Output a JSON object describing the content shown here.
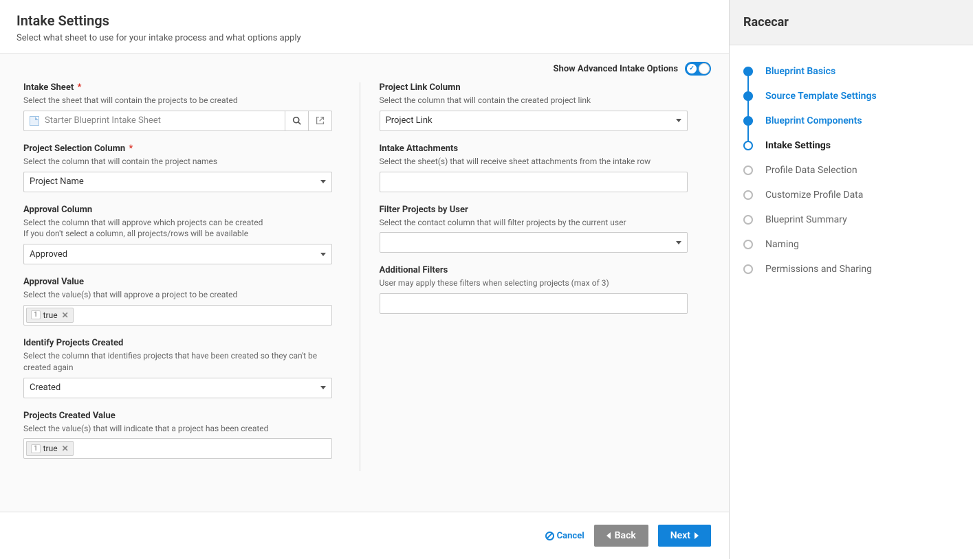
{
  "header": {
    "title": "Intake Settings",
    "subtitle": "Select what sheet to use for your intake process and what options apply"
  },
  "advanced": {
    "label": "Show Advanced Intake Options",
    "on": true
  },
  "left": {
    "intake_sheet": {
      "label": "Intake Sheet",
      "required": true,
      "help": "Select the sheet that will contain the projects to be created",
      "value": "Starter Blueprint Intake Sheet"
    },
    "project_selection": {
      "label": "Project Selection Column",
      "required": true,
      "help": "Select the column that will contain the project names",
      "value": "Project Name"
    },
    "approval_column": {
      "label": "Approval Column",
      "help1": "Select the column that will approve which projects can be created",
      "help2": "If you don't select a column, all projects/rows will be available",
      "value": "Approved"
    },
    "approval_value": {
      "label": "Approval Value",
      "help": "Select the value(s) that will approve a project to be created",
      "tag_index": "1",
      "tag_value": "true"
    },
    "identify_created": {
      "label": "Identify Projects Created",
      "help": "Select the column that identifies projects that have been created so they can't be created again",
      "value": "Created"
    },
    "created_value": {
      "label": "Projects Created Value",
      "help": "Select the value(s) that will indicate that a project has been created",
      "tag_index": "1",
      "tag_value": "true"
    }
  },
  "right": {
    "project_link": {
      "label": "Project Link Column",
      "help": "Select the column that will contain the created project link",
      "value": "Project Link"
    },
    "intake_attachments": {
      "label": "Intake Attachments",
      "help": "Select the sheet(s) that will receive sheet attachments from the intake row"
    },
    "filter_by_user": {
      "label": "Filter Projects by User",
      "help": "Select the contact column that will filter projects by the current user"
    },
    "additional_filters": {
      "label": "Additional Filters",
      "help": "User may apply these filters when selecting projects (max of 3)"
    }
  },
  "footer": {
    "cancel": "Cancel",
    "back": "Back",
    "next": "Next"
  },
  "wizard": {
    "title": "Racecar",
    "steps": [
      {
        "label": "Blueprint Basics",
        "state": "done"
      },
      {
        "label": "Source Template Settings",
        "state": "done"
      },
      {
        "label": "Blueprint Components",
        "state": "done"
      },
      {
        "label": "Intake Settings",
        "state": "current"
      },
      {
        "label": "Profile Data Selection",
        "state": "todo"
      },
      {
        "label": "Customize Profile Data",
        "state": "todo"
      },
      {
        "label": "Blueprint Summary",
        "state": "todo"
      },
      {
        "label": "Naming",
        "state": "todo"
      },
      {
        "label": "Permissions and Sharing",
        "state": "todo"
      }
    ]
  }
}
